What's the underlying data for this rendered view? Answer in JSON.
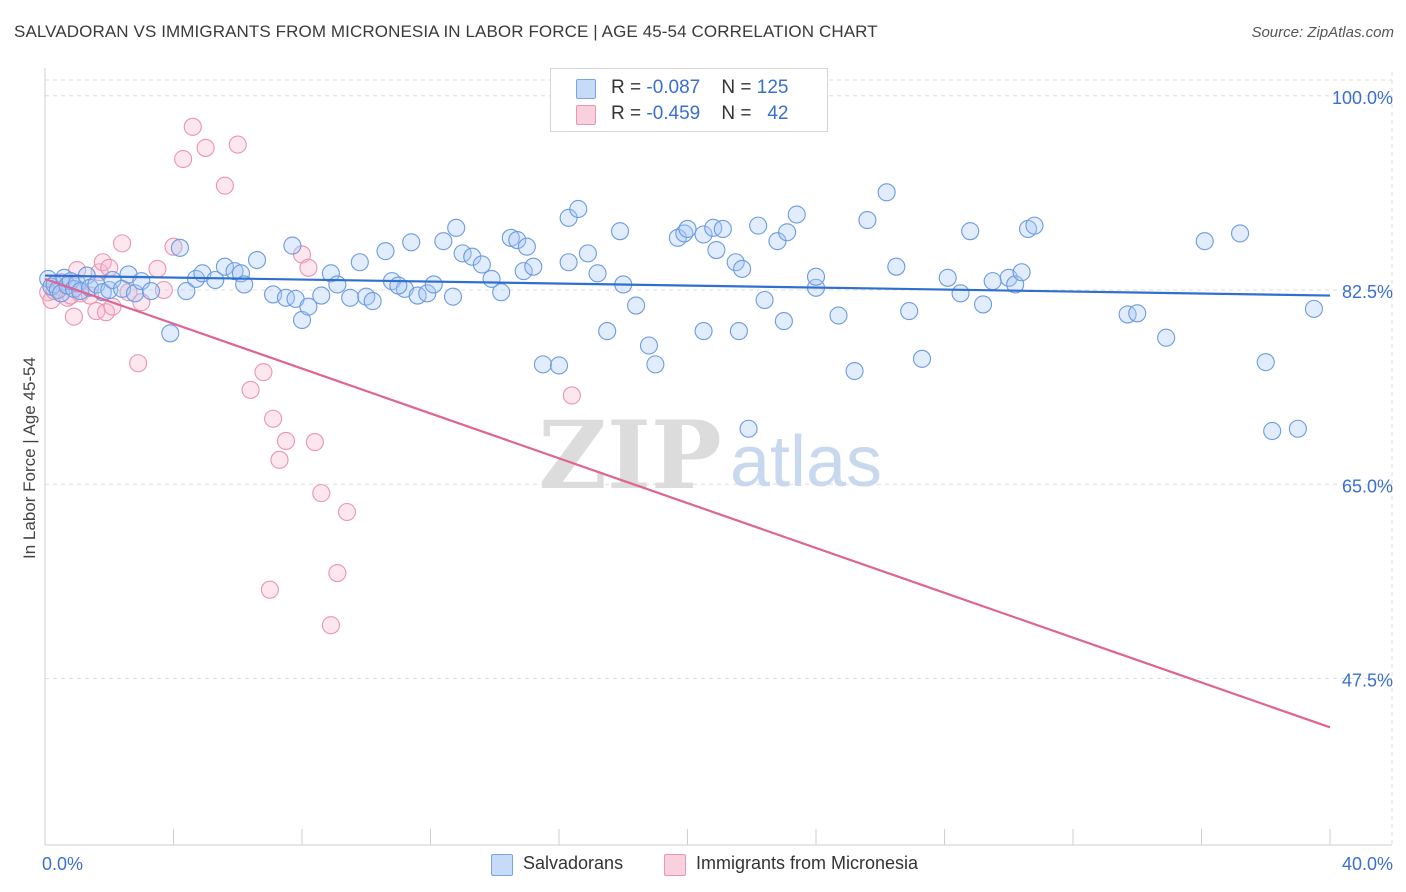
{
  "title": "SALVADORAN VS IMMIGRANTS FROM MICRONESIA IN LABOR FORCE | AGE 45-54 CORRELATION CHART",
  "source": "Source: ZipAtlas.com",
  "watermark": {
    "zip": "ZIP",
    "atlas": "atlas"
  },
  "legend": {
    "rows": [
      {
        "r_label": "R = ",
        "r_value": "-0.087",
        "n_label": "N = ",
        "n_value": "125",
        "color": "#a9c8f5"
      },
      {
        "r_label": "R = ",
        "r_value": "-0.459",
        "n_label": "N = ",
        "n_value": "42",
        "color": "#f5b8cb"
      }
    ]
  },
  "bottom_legend": [
    "Salvadorans",
    "Immigrants from Micronesia"
  ],
  "chart_data": {
    "type": "scatter",
    "xlabel": "",
    "ylabel": "In Labor Force | Age 45-54",
    "x_tick_labels": [
      "0.0%",
      "40.0%"
    ],
    "y_tick_labels": [
      "100.0%",
      "82.5%",
      "65.0%",
      "47.5%"
    ],
    "y_ticks": [
      100.0,
      82.5,
      65.0,
      47.5
    ],
    "xlim": [
      0,
      40
    ],
    "ylim": [
      32.5,
      102.5
    ],
    "grid": true,
    "colors": {
      "Salvadorans": "#5b8fd9",
      "Immigrants from Micronesia": "#e87aa0",
      "blue_line": "#2f6fcf",
      "pink_line": "#de6593",
      "tick_text": "#3a6fd0"
    },
    "series": [
      {
        "name": "Salvadorans",
        "trend": {
          "x": [
            0,
            40
          ],
          "y": [
            83.8,
            82.0
          ]
        },
        "points": [
          [
            0.1,
            83.5
          ],
          [
            0.2,
            82.8
          ],
          [
            0.3,
            83.0
          ],
          [
            0.4,
            82.5
          ],
          [
            0.5,
            82.2
          ],
          [
            0.6,
            83.6
          ],
          [
            0.7,
            82.9
          ],
          [
            0.8,
            83.3
          ],
          [
            0.9,
            82.6
          ],
          [
            1.0,
            83.1
          ],
          [
            1.1,
            82.4
          ],
          [
            1.3,
            83.8
          ],
          [
            1.4,
            82.7
          ],
          [
            1.6,
            83.0
          ],
          [
            1.8,
            82.3
          ],
          [
            2.0,
            82.5
          ],
          [
            2.1,
            83.4
          ],
          [
            2.4,
            82.6
          ],
          [
            2.6,
            83.9
          ],
          [
            2.8,
            82.2
          ],
          [
            3.0,
            83.3
          ],
          [
            3.3,
            82.4
          ],
          [
            3.9,
            78.6
          ],
          [
            4.2,
            86.3
          ],
          [
            4.4,
            82.4
          ],
          [
            4.7,
            83.5
          ],
          [
            4.9,
            84.0
          ],
          [
            5.3,
            83.4
          ],
          [
            5.6,
            84.6
          ],
          [
            5.9,
            84.2
          ],
          [
            6.1,
            84.0
          ],
          [
            6.6,
            85.2
          ],
          [
            6.2,
            83.0
          ],
          [
            7.1,
            82.1
          ],
          [
            7.5,
            81.8
          ],
          [
            7.7,
            86.5
          ],
          [
            7.8,
            81.7
          ],
          [
            8.0,
            79.8
          ],
          [
            8.2,
            81.0
          ],
          [
            8.6,
            82.0
          ],
          [
            8.9,
            84.0
          ],
          [
            9.1,
            83.0
          ],
          [
            9.5,
            81.8
          ],
          [
            9.8,
            85.0
          ],
          [
            10.0,
            81.9
          ],
          [
            10.2,
            81.5
          ],
          [
            10.6,
            86.0
          ],
          [
            10.8,
            83.3
          ],
          [
            11.2,
            82.6
          ],
          [
            11.4,
            86.8
          ],
          [
            11.0,
            82.9
          ],
          [
            11.6,
            82.0
          ],
          [
            11.9,
            82.2
          ],
          [
            12.1,
            83.0
          ],
          [
            12.4,
            86.9
          ],
          [
            12.7,
            81.9
          ],
          [
            12.8,
            88.1
          ],
          [
            13.0,
            85.8
          ],
          [
            13.3,
            85.5
          ],
          [
            13.6,
            84.8
          ],
          [
            13.9,
            83.5
          ],
          [
            14.2,
            82.3
          ],
          [
            14.5,
            87.2
          ],
          [
            14.7,
            87.0
          ],
          [
            14.9,
            84.2
          ],
          [
            15.2,
            84.6
          ],
          [
            15.0,
            86.4
          ],
          [
            15.5,
            75.8
          ],
          [
            16.3,
            89.0
          ],
          [
            16.6,
            89.8
          ],
          [
            16.3,
            85.0
          ],
          [
            16.0,
            75.7
          ],
          [
            16.9,
            85.8
          ],
          [
            17.2,
            84.0
          ],
          [
            17.5,
            78.8
          ],
          [
            17.9,
            87.8
          ],
          [
            18.0,
            83.0
          ],
          [
            18.4,
            81.1
          ],
          [
            18.8,
            77.5
          ],
          [
            19.0,
            75.8
          ],
          [
            19.7,
            87.2
          ],
          [
            19.9,
            87.6
          ],
          [
            20.0,
            88.0
          ],
          [
            20.5,
            78.8
          ],
          [
            20.5,
            87.5
          ],
          [
            20.8,
            88.1
          ],
          [
            20.9,
            86.1
          ],
          [
            21.1,
            88.0
          ],
          [
            21.5,
            85.0
          ],
          [
            21.7,
            84.4
          ],
          [
            21.6,
            78.8
          ],
          [
            22.4,
            81.6
          ],
          [
            22.8,
            86.9
          ],
          [
            23.1,
            87.7
          ],
          [
            22.2,
            88.3
          ],
          [
            23.0,
            79.7
          ],
          [
            24.0,
            82.7
          ],
          [
            23.4,
            89.3
          ],
          [
            24.0,
            83.7
          ],
          [
            24.7,
            80.2
          ],
          [
            25.2,
            75.2
          ],
          [
            25.6,
            88.8
          ],
          [
            26.2,
            91.3
          ],
          [
            26.5,
            84.6
          ],
          [
            26.9,
            80.6
          ],
          [
            27.3,
            76.3
          ],
          [
            28.1,
            83.6
          ],
          [
            28.8,
            87.8
          ],
          [
            28.5,
            82.2
          ],
          [
            29.2,
            81.2
          ],
          [
            29.5,
            83.3
          ],
          [
            30.0,
            83.6
          ],
          [
            30.2,
            83.0
          ],
          [
            30.4,
            84.1
          ],
          [
            30.6,
            88.0
          ],
          [
            30.8,
            88.3
          ],
          [
            33.7,
            80.3
          ],
          [
            34.0,
            80.4
          ],
          [
            34.9,
            78.2
          ],
          [
            36.1,
            86.9
          ],
          [
            37.2,
            87.6
          ],
          [
            39.5,
            80.8
          ],
          [
            38.0,
            76.0
          ],
          [
            39.0,
            70.0
          ],
          [
            38.2,
            69.8
          ],
          [
            21.9,
            70.0
          ]
        ]
      },
      {
        "name": "Immigrants from Micronesia",
        "trend": {
          "x": [
            0,
            40
          ],
          "y": [
            83.5,
            43.1
          ]
        },
        "points": [
          [
            0.1,
            82.3
          ],
          [
            0.2,
            81.6
          ],
          [
            0.3,
            82.4
          ],
          [
            0.5,
            83.2
          ],
          [
            0.7,
            81.8
          ],
          [
            0.8,
            82.0
          ],
          [
            0.9,
            80.1
          ],
          [
            1.0,
            84.3
          ],
          [
            1.1,
            82.2
          ],
          [
            1.4,
            82.0
          ],
          [
            1.6,
            80.6
          ],
          [
            1.7,
            84.1
          ],
          [
            1.8,
            85.0
          ],
          [
            1.9,
            80.5
          ],
          [
            2.0,
            84.5
          ],
          [
            2.1,
            81.0
          ],
          [
            2.4,
            86.7
          ],
          [
            2.6,
            82.3
          ],
          [
            2.9,
            75.9
          ],
          [
            3.0,
            81.4
          ],
          [
            3.5,
            84.4
          ],
          [
            3.7,
            82.5
          ],
          [
            4.0,
            86.4
          ],
          [
            4.3,
            94.3
          ],
          [
            4.6,
            97.2
          ],
          [
            5.0,
            95.3
          ],
          [
            5.6,
            91.9
          ],
          [
            6.0,
            95.6
          ],
          [
            6.4,
            73.5
          ],
          [
            6.8,
            75.1
          ],
          [
            7.1,
            70.9
          ],
          [
            7.3,
            67.2
          ],
          [
            7.5,
            68.9
          ],
          [
            8.0,
            85.7
          ],
          [
            8.2,
            84.5
          ],
          [
            8.4,
            68.8
          ],
          [
            8.6,
            64.2
          ],
          [
            7.0,
            55.5
          ],
          [
            8.9,
            52.3
          ],
          [
            9.1,
            57.0
          ],
          [
            9.4,
            62.5
          ],
          [
            16.4,
            73.0
          ]
        ]
      }
    ]
  }
}
